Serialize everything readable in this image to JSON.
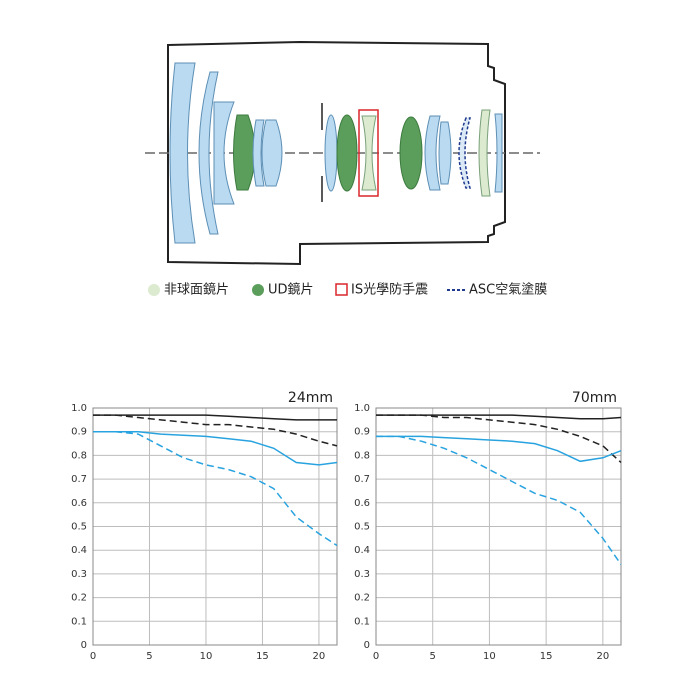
{
  "legend": {
    "aspherical": "非球面鏡片",
    "ud": "UD鏡片",
    "is": "IS光學防手震",
    "asc": "ASC空氣塗膜"
  },
  "chart_data": [
    {
      "type": "line",
      "title": "24mm",
      "x": [
        0,
        2,
        4,
        6,
        8,
        10,
        12,
        14,
        16,
        18,
        20,
        21.6
      ],
      "xlim": [
        0,
        21.6
      ],
      "xticks": [
        0,
        5,
        10,
        15,
        20
      ],
      "ylim": [
        0,
        1
      ],
      "yticks": [
        0,
        0.1,
        0.2,
        0.3,
        0.4,
        0.5,
        0.6,
        0.7,
        0.8,
        0.9,
        {
          "value": 1,
          "label": "1.0"
        }
      ],
      "grid": true,
      "series": [
        {
          "color": "#222222",
          "dashed": false,
          "values": [
            0.97,
            0.97,
            0.97,
            0.97,
            0.97,
            0.97,
            0.965,
            0.96,
            0.955,
            0.95,
            0.95,
            0.95
          ]
        },
        {
          "color": "#222222",
          "dashed": true,
          "values": [
            0.97,
            0.97,
            0.96,
            0.95,
            0.94,
            0.93,
            0.93,
            0.92,
            0.91,
            0.89,
            0.86,
            0.84
          ]
        },
        {
          "color": "#29a3df",
          "dashed": false,
          "values": [
            0.9,
            0.9,
            0.9,
            0.89,
            0.885,
            0.88,
            0.87,
            0.86,
            0.83,
            0.77,
            0.76,
            0.77
          ]
        },
        {
          "color": "#29a3df",
          "dashed": true,
          "values": [
            0.9,
            0.9,
            0.89,
            0.84,
            0.79,
            0.76,
            0.74,
            0.71,
            0.66,
            0.54,
            0.47,
            0.42
          ]
        }
      ]
    },
    {
      "type": "line",
      "title": "70mm",
      "x": [
        0,
        2,
        4,
        6,
        8,
        10,
        12,
        14,
        16,
        18,
        20,
        21.6
      ],
      "xlim": [
        0,
        21.6
      ],
      "xticks": [
        0,
        5,
        10,
        15,
        20
      ],
      "ylim": [
        0,
        1
      ],
      "yticks": [
        0,
        0.1,
        0.2,
        0.3,
        0.4,
        0.5,
        0.6,
        0.7,
        0.8,
        0.9,
        {
          "value": 1,
          "label": "1.0"
        }
      ],
      "grid": true,
      "series": [
        {
          "color": "#222222",
          "dashed": false,
          "values": [
            0.97,
            0.97,
            0.97,
            0.97,
            0.97,
            0.97,
            0.97,
            0.965,
            0.96,
            0.955,
            0.955,
            0.96
          ]
        },
        {
          "color": "#222222",
          "dashed": true,
          "values": [
            0.97,
            0.97,
            0.97,
            0.96,
            0.96,
            0.95,
            0.94,
            0.93,
            0.91,
            0.88,
            0.84,
            0.77
          ]
        },
        {
          "color": "#29a3df",
          "dashed": false,
          "values": [
            0.88,
            0.88,
            0.88,
            0.875,
            0.87,
            0.865,
            0.86,
            0.85,
            0.82,
            0.775,
            0.79,
            0.82
          ]
        },
        {
          "color": "#29a3df",
          "dashed": true,
          "values": [
            0.88,
            0.88,
            0.86,
            0.83,
            0.79,
            0.74,
            0.69,
            0.64,
            0.61,
            0.56,
            0.45,
            0.34
          ]
        }
      ]
    }
  ]
}
